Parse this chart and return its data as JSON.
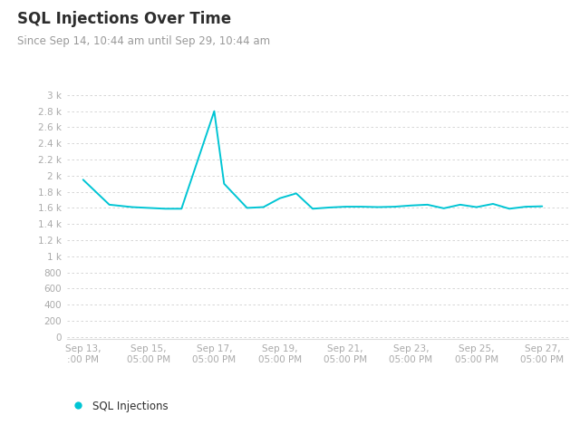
{
  "title": "SQL Injections Over Time",
  "subtitle": "Since Sep 14, 10:44 am until Sep 29, 10:44 am",
  "x_labels": [
    "Sep 13,\n:00 PM",
    "Sep 15,\n05:00 PM",
    "Sep 17,\n05:00 PM",
    "Sep 19,\n05:00 PM",
    "Sep 21,\n05:00 PM",
    "Sep 23,\n05:00 PM",
    "Sep 25,\n05:00 PM",
    "Sep 27,\n05:00 PM"
  ],
  "x_tick_positions": [
    0,
    2,
    4,
    6,
    8,
    10,
    12,
    14
  ],
  "data_x": [
    0,
    0.8,
    1.5,
    2.0,
    2.5,
    3.0,
    4.0,
    4.3,
    5.0,
    5.5,
    6.0,
    6.5,
    7.0,
    7.5,
    8.0,
    8.5,
    9.0,
    9.5,
    10.0,
    10.5,
    11.0,
    11.5,
    12.0,
    12.5,
    13.0,
    13.5,
    14.0
  ],
  "data_y": [
    1950,
    1640,
    1610,
    1600,
    1590,
    1590,
    2800,
    1900,
    1600,
    1610,
    1720,
    1780,
    1590,
    1605,
    1615,
    1615,
    1610,
    1615,
    1630,
    1640,
    1595,
    1640,
    1610,
    1650,
    1590,
    1615,
    1620
  ],
  "line_color": "#00c5d4",
  "background_color": "#ffffff",
  "grid_color": "#d0d0d0",
  "title_color": "#2d2d2d",
  "subtitle_color": "#999999",
  "tick_color": "#aaaaaa",
  "legend_label": "SQL Injections",
  "legend_dot_color": "#00c5d4",
  "ytick_labels": [
    "0",
    "200",
    "400",
    "600",
    "800",
    "1 k",
    "1.2 k",
    "1.4 k",
    "1.6 k",
    "1.8 k",
    "2 k",
    "2.2 k",
    "2.4 k",
    "2.6 k",
    "2.8 k",
    "3 k"
  ],
  "ytick_values": [
    0,
    200,
    400,
    600,
    800,
    1000,
    1200,
    1400,
    1600,
    1800,
    2000,
    2200,
    2400,
    2600,
    2800,
    3000
  ],
  "ylim": [
    -30,
    3100
  ],
  "xlim": [
    -0.5,
    14.8
  ]
}
